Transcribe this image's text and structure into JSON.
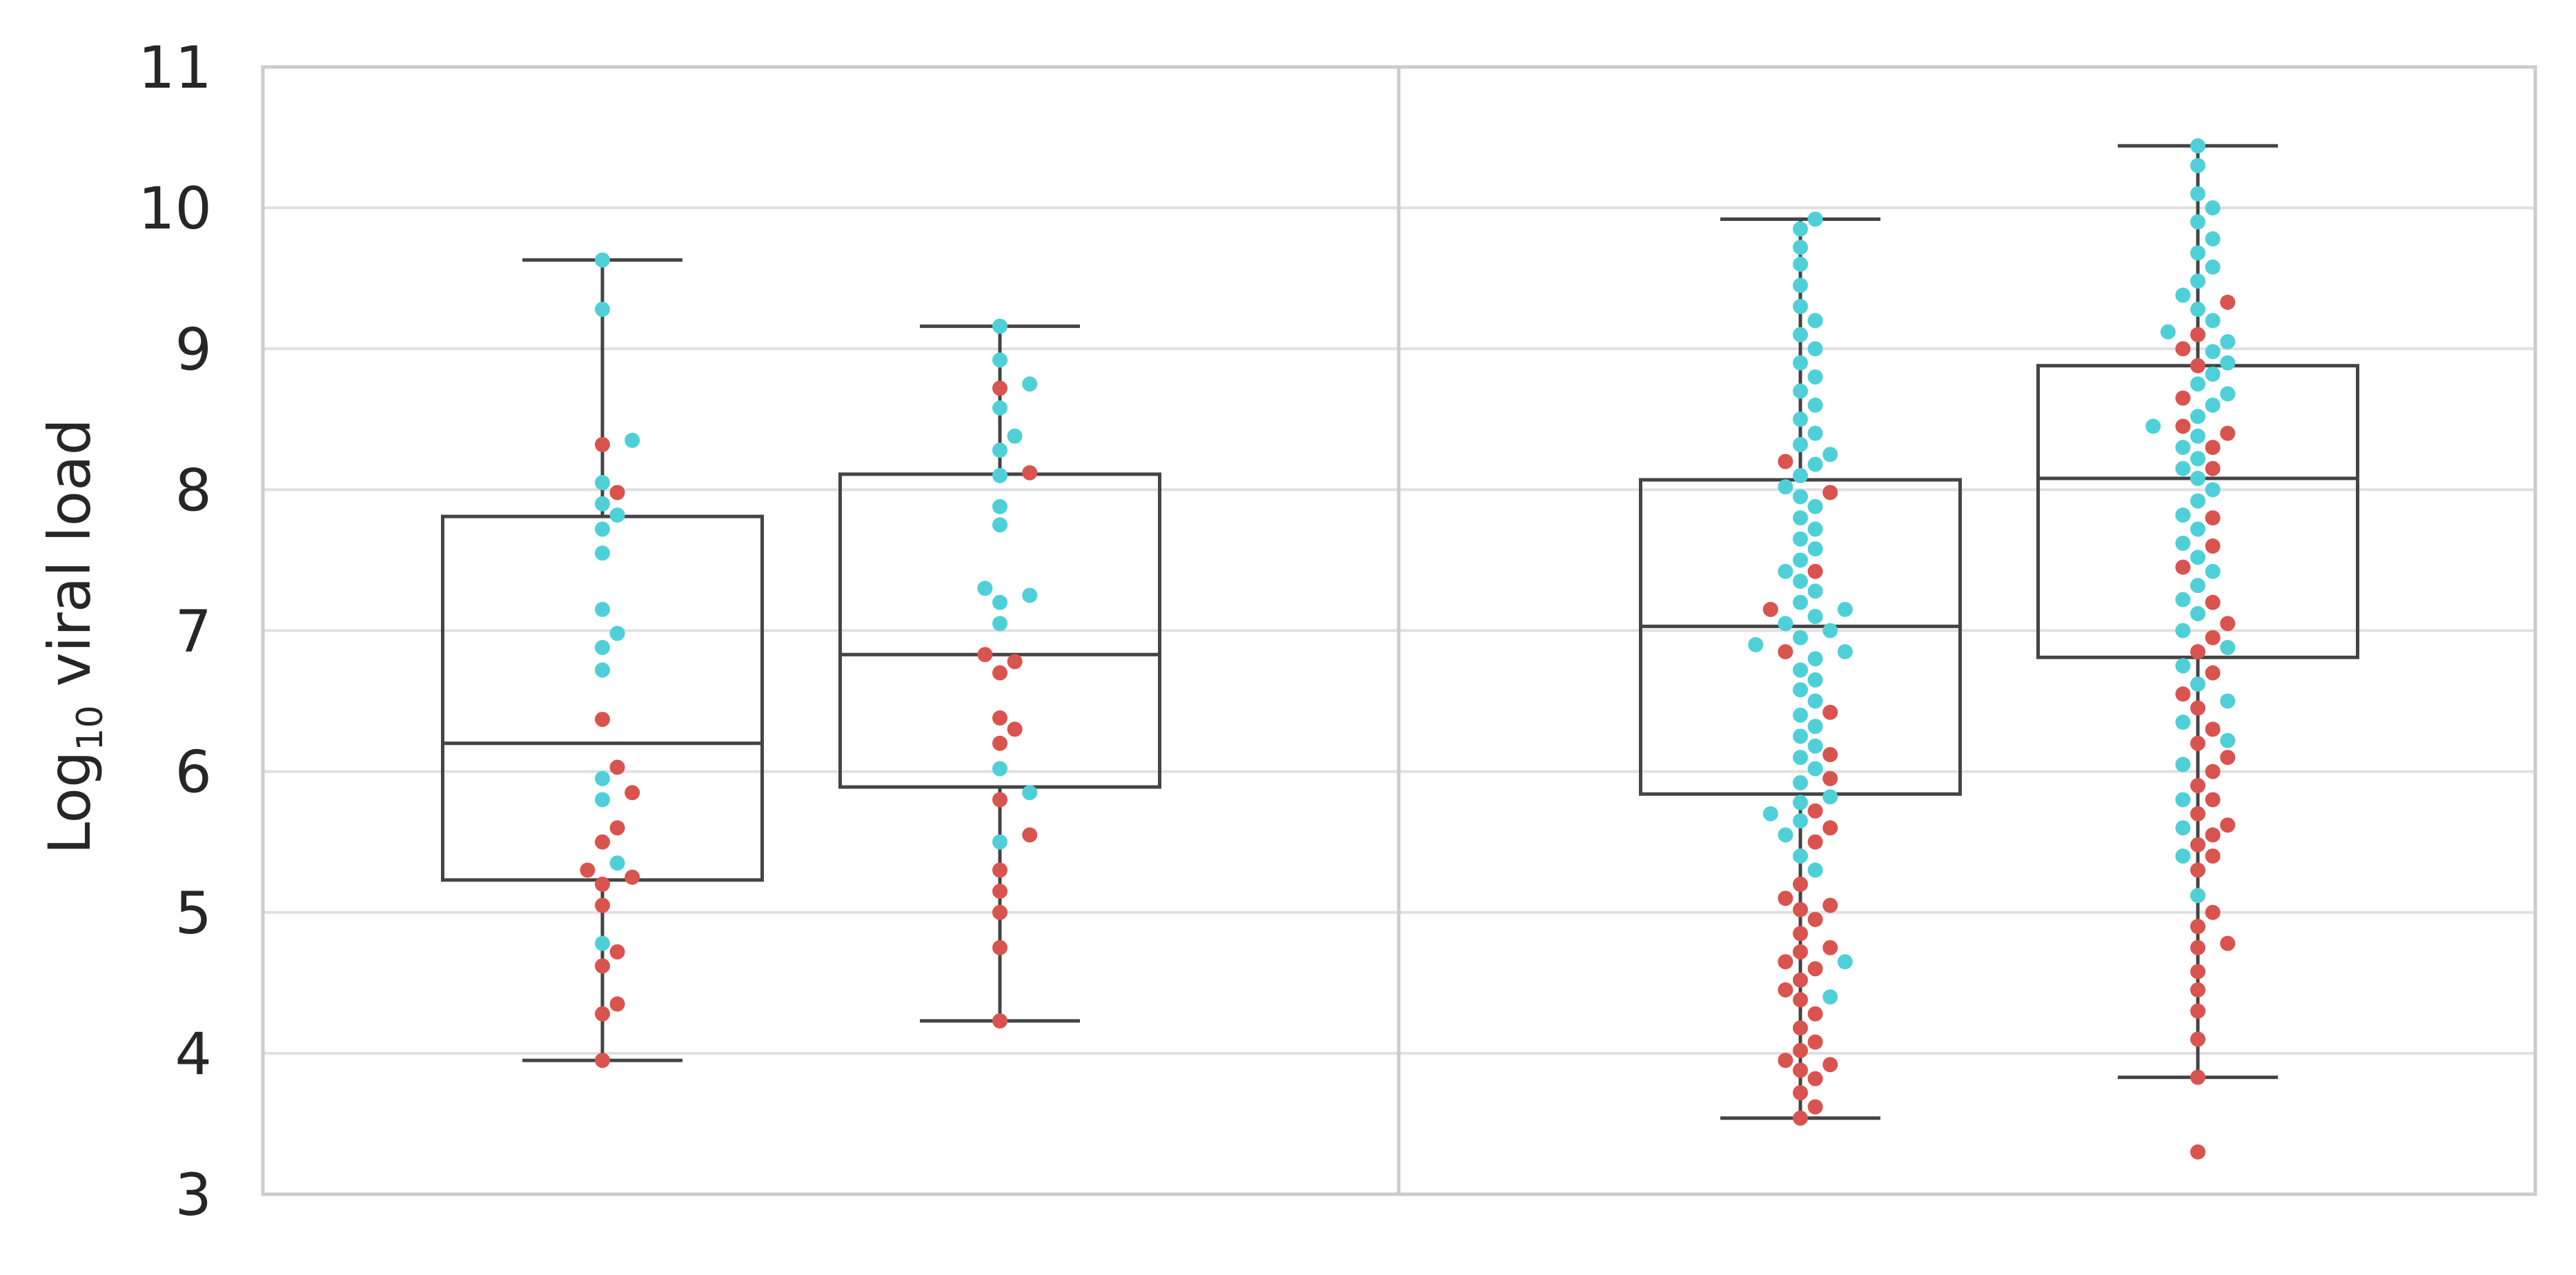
{
  "chart_data": {
    "type": "box",
    "ylabel": {
      "base": "Log",
      "subscript": "10",
      "suffix": " viral load"
    },
    "ylim": [
      3,
      11
    ],
    "yticks": [
      "3",
      "4",
      "5",
      "6",
      "7",
      "8",
      "9",
      "10",
      "11"
    ],
    "grid": true,
    "panel_count": 2,
    "colors": {
      "point_red": "#d9534f",
      "point_cyan": "#4fd0d8",
      "box_edge": "#444444",
      "grid": "#e0e0e0",
      "frame": "#cccccc"
    },
    "boxes": [
      {
        "id": "p1-b1",
        "panel": 0,
        "slot": 0,
        "whisker_low": 3.95,
        "q1": 5.23,
        "median": 6.2,
        "q3": 7.81,
        "whisker_high": 9.63
      },
      {
        "id": "p1-b2",
        "panel": 0,
        "slot": 1,
        "whisker_low": 4.23,
        "q1": 5.89,
        "median": 6.83,
        "q3": 8.11,
        "whisker_high": 9.16
      },
      {
        "id": "p2-b1",
        "panel": 1,
        "slot": 0,
        "whisker_low": 3.54,
        "q1": 5.84,
        "median": 7.03,
        "q3": 8.07,
        "whisker_high": 9.92
      },
      {
        "id": "p2-b2",
        "panel": 1,
        "slot": 1,
        "whisker_low": 3.83,
        "q1": 6.81,
        "median": 8.08,
        "q3": 8.88,
        "whisker_high": 10.44
      }
    ],
    "swarms": [
      {
        "box": 0,
        "red_values": [
          3.95,
          4.28,
          4.35,
          4.62,
          4.72,
          5.05,
          5.2,
          5.25,
          5.3,
          5.5,
          5.6,
          5.85,
          6.03,
          6.37,
          7.98,
          8.32
        ],
        "cyan_values": [
          4.78,
          5.35,
          5.8,
          5.95,
          6.72,
          6.88,
          6.98,
          7.15,
          7.55,
          7.72,
          7.82,
          7.9,
          8.05,
          8.35,
          9.28,
          9.63
        ]
      },
      {
        "box": 1,
        "red_values": [
          4.23,
          4.75,
          5.0,
          5.15,
          5.3,
          5.55,
          5.8,
          6.2,
          6.3,
          6.38,
          6.7,
          6.78,
          6.83,
          8.12,
          8.72
        ],
        "cyan_values": [
          5.5,
          5.85,
          6.02,
          7.05,
          7.2,
          7.25,
          7.3,
          7.75,
          7.88,
          8.1,
          8.28,
          8.38,
          8.58,
          8.75,
          8.92,
          9.16
        ]
      },
      {
        "box": 2,
        "red_values": [
          3.54,
          3.62,
          3.72,
          3.82,
          3.88,
          3.92,
          3.95,
          4.02,
          4.08,
          4.18,
          4.28,
          4.38,
          4.45,
          4.52,
          4.6,
          4.65,
          4.72,
          4.75,
          4.85,
          4.95,
          5.02,
          5.05,
          5.1,
          5.2,
          5.5,
          5.6,
          5.72,
          5.95,
          6.12,
          6.42,
          6.85,
          7.15,
          7.42,
          7.98,
          8.2
        ],
        "cyan_values": [
          4.4,
          4.65,
          5.3,
          5.4,
          5.55,
          5.65,
          5.7,
          5.78,
          5.82,
          5.92,
          6.02,
          6.1,
          6.18,
          6.25,
          6.32,
          6.4,
          6.5,
          6.58,
          6.65,
          6.72,
          6.8,
          6.85,
          6.9,
          6.95,
          7.0,
          7.05,
          7.1,
          7.15,
          7.2,
          7.28,
          7.35,
          7.42,
          7.5,
          7.58,
          7.65,
          7.72,
          7.8,
          7.88,
          7.95,
          8.02,
          8.1,
          8.18,
          8.25,
          8.32,
          8.4,
          8.5,
          8.6,
          8.7,
          8.8,
          8.9,
          9.0,
          9.1,
          9.2,
          9.3,
          9.45,
          9.6,
          9.72,
          9.85,
          9.92
        ]
      },
      {
        "box": 3,
        "red_values": [
          3.3,
          3.83,
          4.1,
          4.3,
          4.45,
          4.58,
          4.75,
          4.78,
          4.9,
          5.0,
          5.3,
          5.4,
          5.48,
          5.55,
          5.62,
          5.7,
          5.8,
          5.9,
          6.0,
          6.1,
          6.2,
          6.3,
          6.45,
          6.55,
          6.7,
          6.85,
          6.95,
          7.05,
          7.2,
          7.45,
          7.6,
          7.8,
          8.15,
          8.3,
          8.4,
          8.45,
          8.65,
          8.88,
          9.0,
          9.1,
          9.33
        ],
        "cyan_values": [
          5.12,
          5.4,
          5.6,
          5.8,
          6.05,
          6.22,
          6.35,
          6.5,
          6.62,
          6.75,
          6.88,
          7.0,
          7.12,
          7.22,
          7.32,
          7.42,
          7.52,
          7.62,
          7.72,
          7.82,
          7.92,
          8.0,
          8.08,
          8.15,
          8.22,
          8.3,
          8.38,
          8.45,
          8.52,
          8.6,
          8.68,
          8.75,
          8.82,
          8.9,
          8.98,
          9.05,
          9.12,
          9.2,
          9.28,
          9.38,
          9.48,
          9.58,
          9.68,
          9.78,
          9.9,
          10.0,
          10.1,
          10.3,
          10.44
        ]
      }
    ]
  }
}
